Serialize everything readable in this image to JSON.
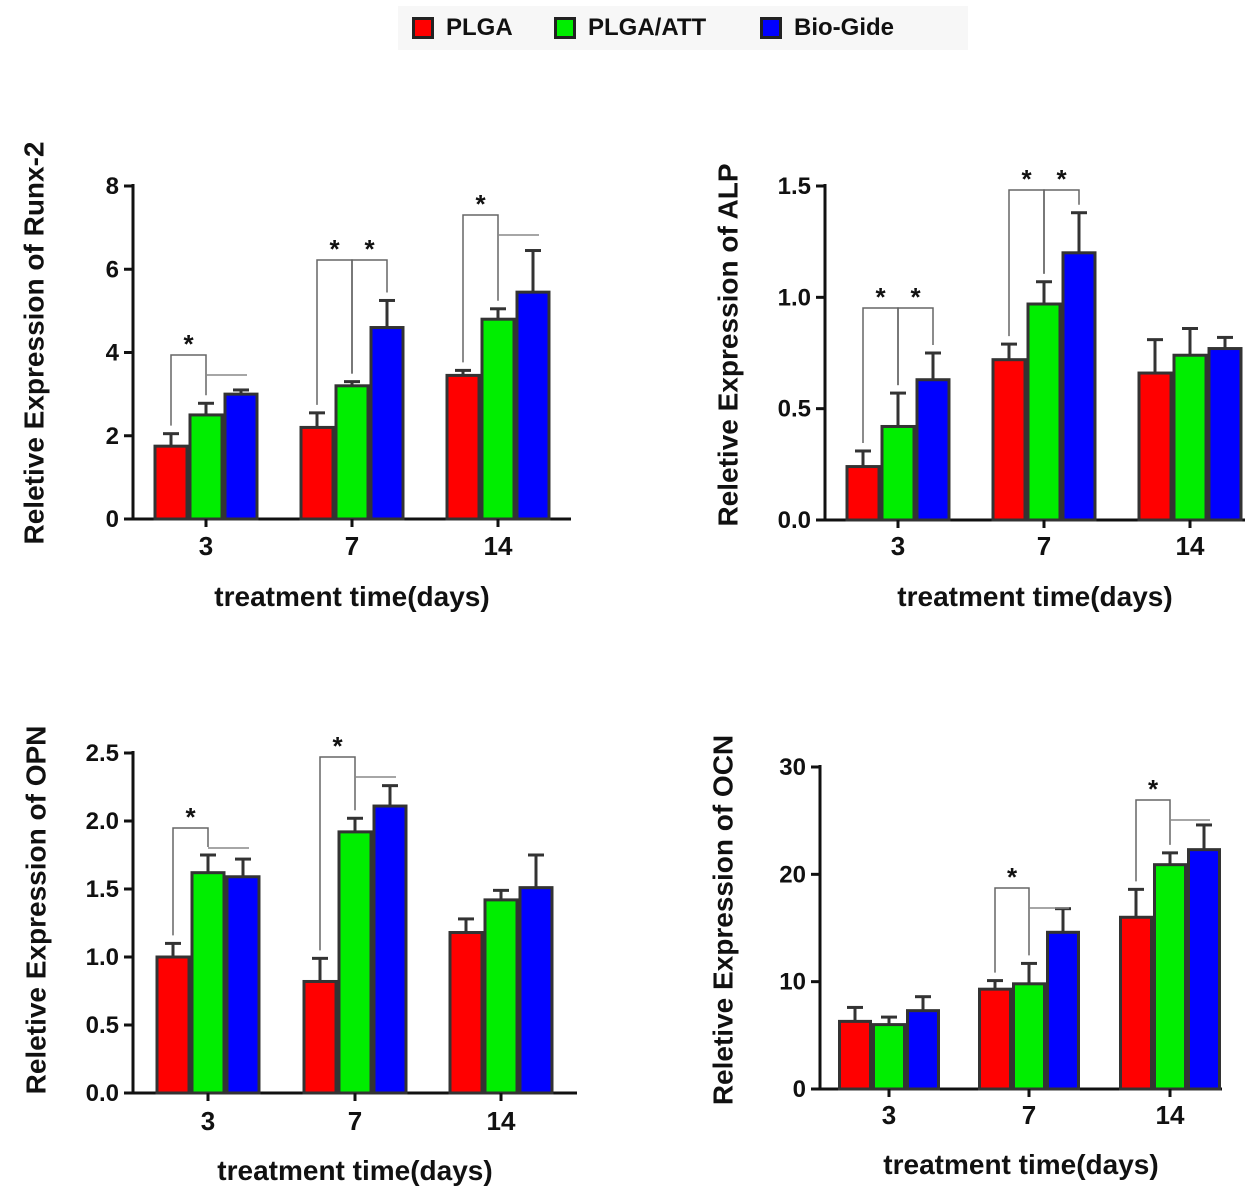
{
  "legend": [
    {
      "label": "PLGA",
      "color": "#ff0000"
    },
    {
      "label": "PLGA/ATT",
      "color": "#00ee00"
    },
    {
      "label": "Bio-Gide",
      "color": "#0000ff"
    }
  ],
  "chart_data": [
    {
      "type": "bar",
      "ylabel": "Reletive Expression of Runx-2",
      "xlabel": "treatment time(days)",
      "categories": [
        "3",
        "7",
        "14"
      ],
      "ylim": [
        0,
        8
      ],
      "yticks": [
        "0",
        "2",
        "4",
        "6",
        "8"
      ],
      "series": [
        {
          "name": "PLGA",
          "values": [
            1.75,
            2.2,
            3.45
          ],
          "errors": [
            0.3,
            0.35,
            0.12
          ]
        },
        {
          "name": "PLGA/ATT",
          "values": [
            2.5,
            3.2,
            4.8
          ],
          "errors": [
            0.28,
            0.1,
            0.25
          ]
        },
        {
          "name": "Bio-Gide",
          "values": [
            3.0,
            4.6,
            5.45
          ],
          "errors": [
            0.1,
            0.65,
            1.0
          ]
        }
      ],
      "significance": [
        {
          "group": 0,
          "label": "*",
          "pairs": [
            "0-1"
          ]
        },
        {
          "group": 1,
          "label": "*",
          "pairs": [
            "0-1",
            "1-2"
          ]
        },
        {
          "group": 2,
          "label": "*",
          "pairs": [
            "0-1"
          ]
        }
      ]
    },
    {
      "type": "bar",
      "ylabel": "Reletive Expression of ALP",
      "xlabel": "treatment time(days)",
      "categories": [
        "3",
        "7",
        "14"
      ],
      "ylim": [
        0,
        1.5
      ],
      "yticks": [
        "0.0",
        "0.5",
        "1.0",
        "1.5"
      ],
      "series": [
        {
          "name": "PLGA",
          "values": [
            0.24,
            0.72,
            0.66
          ],
          "errors": [
            0.07,
            0.07,
            0.15
          ]
        },
        {
          "name": "PLGA/ATT",
          "values": [
            0.42,
            0.97,
            0.74
          ],
          "errors": [
            0.15,
            0.1,
            0.12
          ]
        },
        {
          "name": "Bio-Gide",
          "values": [
            0.63,
            1.2,
            0.77
          ],
          "errors": [
            0.12,
            0.18,
            0.05
          ]
        }
      ],
      "significance": [
        {
          "group": 0,
          "label": "*",
          "pairs": [
            "0-1",
            "1-2"
          ]
        },
        {
          "group": 1,
          "label": "*",
          "pairs": [
            "0-1",
            "1-2"
          ]
        }
      ]
    },
    {
      "type": "bar",
      "ylabel": "Reletive Expression of OPN",
      "xlabel": "treatment time(days)",
      "categories": [
        "3",
        "7",
        "14"
      ],
      "ylim": [
        0,
        2.5
      ],
      "yticks": [
        "0.0",
        "0.5",
        "1.0",
        "1.5",
        "2.0",
        "2.5"
      ],
      "series": [
        {
          "name": "PLGA",
          "values": [
            1.0,
            0.82,
            1.18
          ],
          "errors": [
            0.1,
            0.17,
            0.1
          ]
        },
        {
          "name": "PLGA/ATT",
          "values": [
            1.62,
            1.92,
            1.42
          ],
          "errors": [
            0.13,
            0.1,
            0.07
          ]
        },
        {
          "name": "Bio-Gide",
          "values": [
            1.59,
            2.11,
            1.51
          ],
          "errors": [
            0.13,
            0.15,
            0.24
          ]
        }
      ],
      "significance": [
        {
          "group": 0,
          "label": "*",
          "pairs": [
            "0-1"
          ]
        },
        {
          "group": 1,
          "label": "*",
          "pairs": [
            "0-1"
          ]
        }
      ]
    },
    {
      "type": "bar",
      "ylabel": "Reletive Expression of OCN",
      "xlabel": "treatment time(days)",
      "categories": [
        "3",
        "7",
        "14"
      ],
      "ylim": [
        0,
        30
      ],
      "yticks": [
        "0",
        "10",
        "20",
        "30"
      ],
      "series": [
        {
          "name": "PLGA",
          "values": [
            6.3,
            9.3,
            16.0
          ],
          "errors": [
            1.3,
            0.8,
            2.6
          ]
        },
        {
          "name": "PLGA/ATT",
          "values": [
            6.0,
            9.8,
            20.9
          ],
          "errors": [
            0.7,
            1.9,
            1.1
          ]
        },
        {
          "name": "Bio-Gide",
          "values": [
            7.3,
            14.6,
            22.3
          ],
          "errors": [
            1.3,
            2.2,
            2.3
          ]
        }
      ],
      "significance": [
        {
          "group": 1,
          "label": "*",
          "pairs": [
            "0-1"
          ]
        },
        {
          "group": 2,
          "label": "*",
          "pairs": [
            "0-1"
          ]
        }
      ]
    }
  ]
}
